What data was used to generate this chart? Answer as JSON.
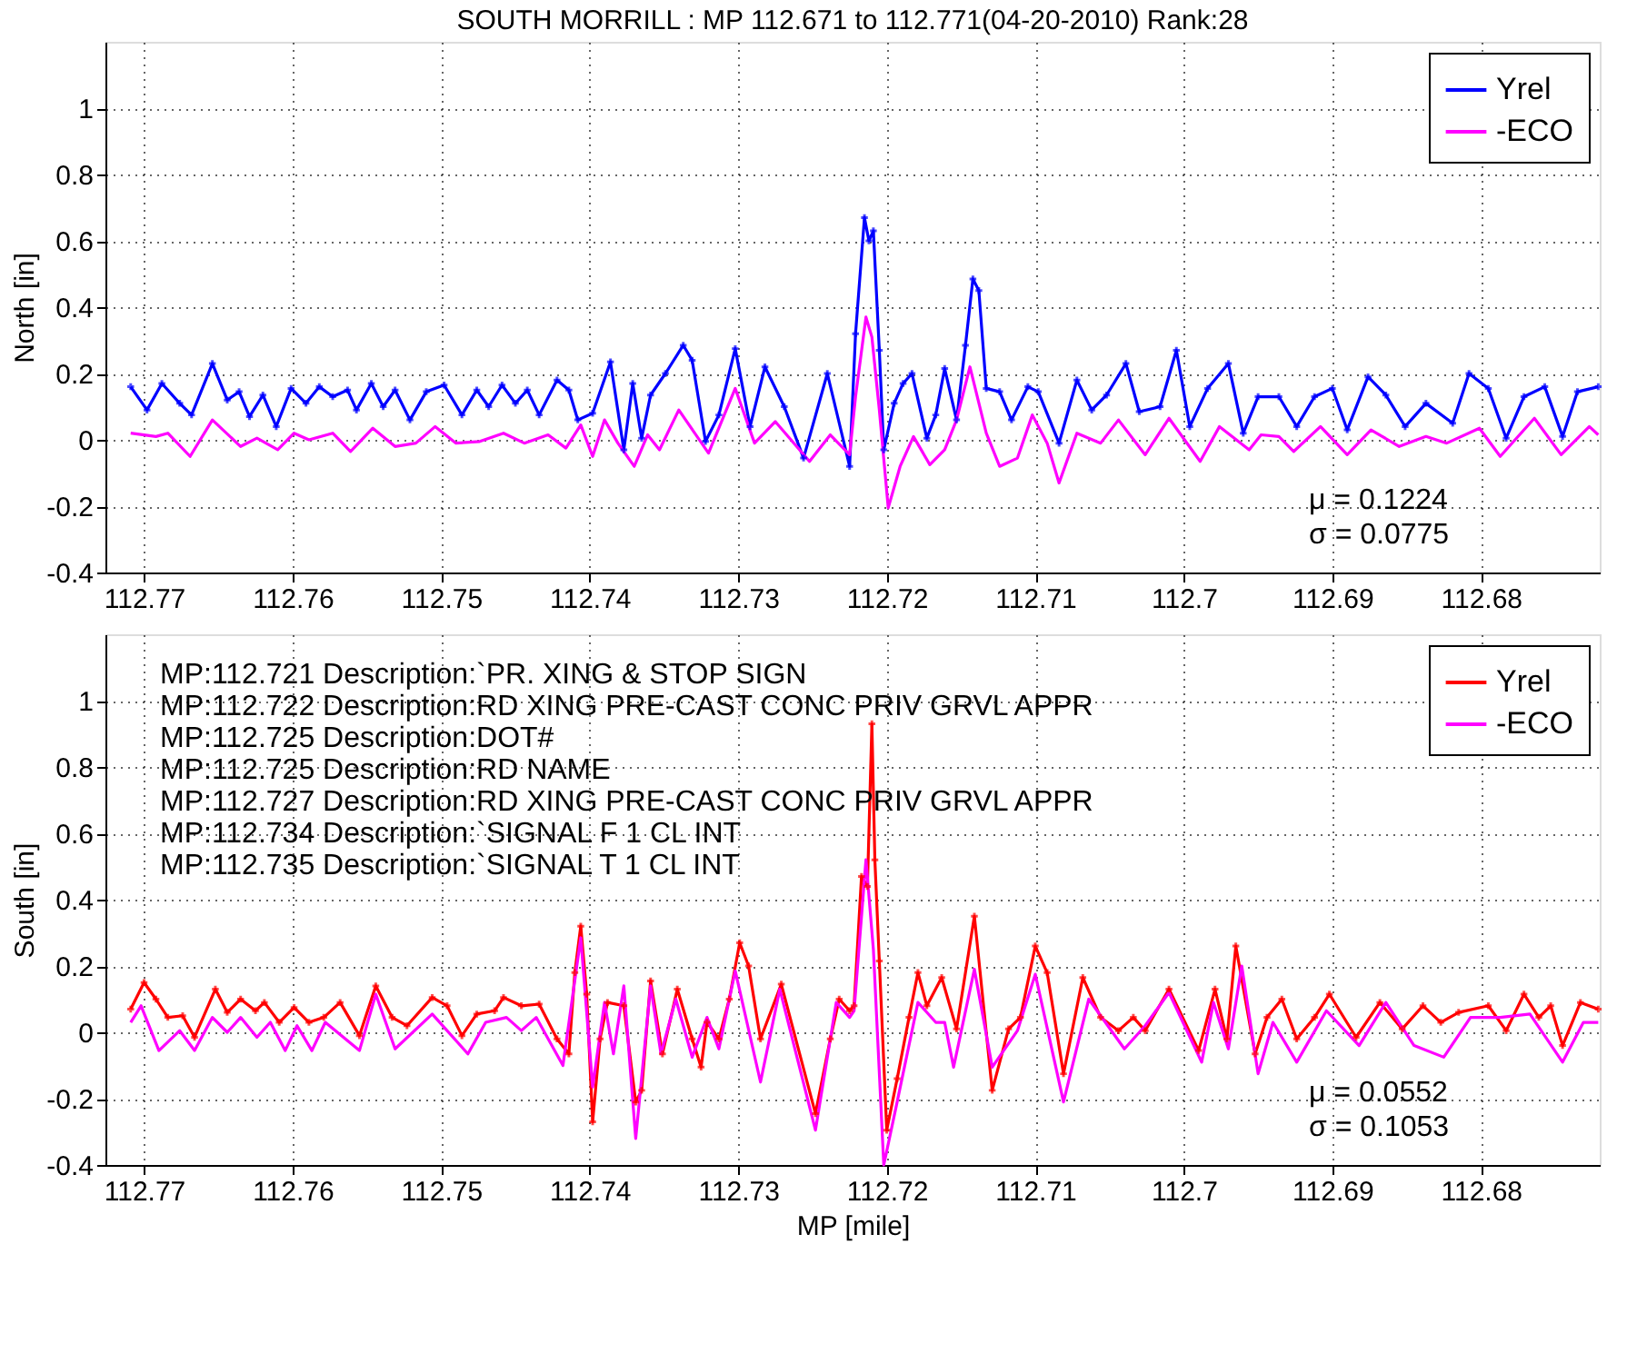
{
  "chart_data": [
    {
      "type": "line",
      "title": "SOUTH MORRILL : MP 112.671 to 112.771(04-20-2010) Rank:28",
      "ylabel": "North [in]",
      "xlim": [
        112.7726,
        112.672
      ],
      "xticks": [
        112.77,
        112.76,
        112.75,
        112.74,
        112.73,
        112.72,
        112.71,
        112.7,
        112.69,
        112.68
      ],
      "ylim": [
        -0.4,
        1.2
      ],
      "yticks": [
        -0.4,
        -0.2,
        0,
        0.2,
        0.4,
        0.6,
        0.8,
        1
      ],
      "grid": true,
      "legend": "top right",
      "annotations": [
        "μ = 0.1224",
        "σ = 0.0775"
      ],
      "series": [
        {
          "name": "Yrel",
          "color": "#0000ff",
          "marker": "cross",
          "x": [
            112.7709,
            112.7698,
            112.7688,
            112.7676,
            112.7668,
            112.7654,
            112.7644,
            112.7636,
            112.7629,
            112.762,
            112.7611,
            112.7601,
            112.7591,
            112.7582,
            112.7573,
            112.7563,
            112.7557,
            112.7547,
            112.7539,
            112.7531,
            112.7521,
            112.751,
            112.7498,
            112.7486,
            112.7476,
            112.7468,
            112.7459,
            112.745,
            112.7442,
            112.7434,
            112.7422,
            112.7414,
            112.7408,
            112.7398,
            112.7386,
            112.7377,
            112.7371,
            112.7365,
            112.7359,
            112.7349,
            112.7337,
            112.7331,
            112.7322,
            112.7313,
            112.7302,
            112.7292,
            112.7282,
            112.7269,
            112.7256,
            112.724,
            112.7225,
            112.7221,
            112.7215,
            112.7212,
            112.7209,
            112.7205,
            112.7202,
            112.7195,
            112.7189,
            112.7183,
            112.7173,
            112.7167,
            112.7161,
            112.7153,
            112.7147,
            112.7142,
            112.7138,
            112.7133,
            112.7124,
            112.7116,
            112.7105,
            112.7098,
            112.7084,
            112.7072,
            112.7062,
            112.7052,
            112.7039,
            112.703,
            112.7016,
            112.7005,
            112.6996,
            112.6984,
            112.697,
            112.696,
            112.695,
            112.6936,
            112.6924,
            112.6912,
            112.69,
            112.689,
            112.6876,
            112.6864,
            112.6851,
            112.6837,
            112.6819,
            112.6808,
            112.6795,
            112.6783,
            112.6771,
            112.6757,
            112.6745,
            112.6735,
            112.6721
          ],
          "values": [
            0.16,
            0.09,
            0.17,
            0.11,
            0.075,
            0.23,
            0.12,
            0.145,
            0.07,
            0.135,
            0.04,
            0.155,
            0.11,
            0.16,
            0.13,
            0.15,
            0.09,
            0.17,
            0.1,
            0.15,
            0.06,
            0.145,
            0.165,
            0.075,
            0.15,
            0.1,
            0.165,
            0.11,
            0.15,
            0.075,
            0.18,
            0.15,
            0.06,
            0.08,
            0.235,
            -0.03,
            0.17,
            0.005,
            0.135,
            0.2,
            0.285,
            0.24,
            -0.005,
            0.075,
            0.275,
            0.04,
            0.22,
            0.1,
            -0.055,
            0.2,
            -0.08,
            0.32,
            0.67,
            0.6,
            0.63,
            0.27,
            -0.03,
            0.11,
            0.17,
            0.2,
            0.005,
            0.075,
            0.215,
            0.06,
            0.285,
            0.485,
            0.45,
            0.155,
            0.145,
            0.06,
            0.16,
            0.145,
            -0.01,
            0.18,
            0.09,
            0.135,
            0.23,
            0.085,
            0.1,
            0.27,
            0.04,
            0.155,
            0.23,
            0.02,
            0.13,
            0.13,
            0.04,
            0.13,
            0.155,
            0.03,
            0.19,
            0.135,
            0.04,
            0.11,
            0.05,
            0.2,
            0.155,
            0.005,
            0.13,
            0.16,
            0.01,
            0.145,
            0.16
          ]
        },
        {
          "name": "-ECO",
          "color": "#ff00ff",
          "marker": "none",
          "x": [
            112.7709,
            112.7692,
            112.7684,
            112.7669,
            112.7654,
            112.7635,
            112.7624,
            112.761,
            112.7599,
            112.7589,
            112.7573,
            112.7561,
            112.7546,
            112.7531,
            112.7517,
            112.7504,
            112.749,
            112.7474,
            112.7458,
            112.7444,
            112.7428,
            112.7416,
            112.7406,
            112.7398,
            112.739,
            112.7381,
            112.737,
            112.7361,
            112.7353,
            112.734,
            112.732,
            112.7302,
            112.7289,
            112.7275,
            112.7252,
            112.7238,
            112.7225,
            112.7221,
            112.7214,
            112.721,
            112.7205,
            112.7199,
            112.7191,
            112.7182,
            112.7171,
            112.7161,
            112.7153,
            112.7144,
            112.7133,
            112.7124,
            112.7112,
            112.7102,
            112.7092,
            112.7084,
            112.7072,
            112.7056,
            112.7044,
            112.7026,
            112.701,
            112.6989,
            112.6976,
            112.6956,
            112.6948,
            112.6936,
            112.6926,
            112.6908,
            112.689,
            112.6874,
            112.6855,
            112.6837,
            112.6823,
            112.6801,
            112.6787,
            112.6764,
            112.6746,
            112.6727,
            112.6721
          ],
          "values": [
            0.02,
            0.01,
            0.02,
            -0.05,
            0.06,
            -0.02,
            0.005,
            -0.03,
            0.02,
            0.0,
            0.02,
            -0.035,
            0.035,
            -0.02,
            -0.01,
            0.04,
            -0.01,
            -0.005,
            0.02,
            -0.01,
            0.015,
            -0.025,
            0.045,
            -0.05,
            0.06,
            -0.01,
            -0.08,
            0.015,
            -0.03,
            0.09,
            -0.04,
            0.155,
            -0.01,
            0.055,
            -0.065,
            0.015,
            -0.045,
            0.13,
            0.37,
            0.31,
            0.09,
            -0.205,
            -0.08,
            0.01,
            -0.075,
            -0.03,
            0.06,
            0.22,
            0.02,
            -0.08,
            -0.055,
            0.075,
            -0.01,
            -0.13,
            0.02,
            -0.01,
            0.06,
            -0.045,
            0.065,
            -0.065,
            0.04,
            -0.03,
            0.015,
            0.01,
            -0.035,
            0.04,
            -0.045,
            0.03,
            -0.02,
            0.01,
            -0.01,
            0.035,
            -0.05,
            0.065,
            -0.045,
            0.04,
            0.015
          ]
        }
      ]
    },
    {
      "type": "line",
      "ylabel": "South [in]",
      "xlabel": "MP [mile]",
      "xlim": [
        112.7726,
        112.672
      ],
      "xticks": [
        112.77,
        112.76,
        112.75,
        112.74,
        112.73,
        112.72,
        112.71,
        112.7,
        112.69,
        112.68
      ],
      "ylim": [
        -0.4,
        1.2
      ],
      "yticks": [
        -0.4,
        -0.2,
        0,
        0.2,
        0.4,
        0.6,
        0.8,
        1
      ],
      "grid": true,
      "legend": "top right",
      "annotations": [
        "MP:112.721  Description:`PR. XING & STOP SIGN",
        "MP:112.722  Description:RD XING PRE-CAST CONC PRIV GRVL APPR",
        "MP:112.725  Description:DOT#",
        "MP:112.725  Description:RD NAME",
        "MP:112.727  Description:RD XING PRE-CAST CONC PRIV GRVL APPR",
        "MP:112.734  Description:`SIGNAL F 1 CL INT",
        "MP:112.735  Description:`SIGNAL T 1 CL INT",
        "μ = 0.0552",
        "σ = 0.1053"
      ],
      "series": [
        {
          "name": "Yrel",
          "color": "#ff0000",
          "marker": "cross",
          "x": [
            112.7709,
            112.77,
            112.7692,
            112.7684,
            112.7674,
            112.7666,
            112.7652,
            112.7644,
            112.7635,
            112.7625,
            112.7619,
            112.7609,
            112.7599,
            112.7589,
            112.7579,
            112.7568,
            112.7555,
            112.7544,
            112.7533,
            112.7523,
            112.7506,
            112.7496,
            112.7486,
            112.7476,
            112.7464,
            112.7458,
            112.7446,
            112.7434,
            112.7422,
            112.7414,
            112.741,
            112.7406,
            112.7402,
            112.7398,
            112.7393,
            112.7388,
            112.7377,
            112.7369,
            112.7365,
            112.7359,
            112.7351,
            112.7341,
            112.7331,
            112.7325,
            112.7321,
            112.7313,
            112.7306,
            112.7299,
            112.7293,
            112.7285,
            112.7271,
            112.7248,
            112.7238,
            112.7232,
            112.7225,
            112.7222,
            112.7217,
            112.7213,
            112.721,
            112.7208,
            112.7205,
            112.72,
            112.7193,
            112.7185,
            112.7179,
            112.7173,
            112.7163,
            112.7153,
            112.7141,
            112.7129,
            112.7118,
            112.711,
            112.71,
            112.7092,
            112.7081,
            112.7068,
            112.7056,
            112.7044,
            112.7034,
            112.7026,
            112.701,
            112.699,
            112.6979,
            112.6971,
            112.6965,
            112.6952,
            112.6944,
            112.6934,
            112.6924,
            112.6912,
            112.6902,
            112.6884,
            112.6868,
            112.6853,
            112.6839,
            112.6827,
            112.6815,
            112.6795,
            112.6783,
            112.6771,
            112.6761,
            112.6753,
            112.6745,
            112.6733,
            112.6721
          ],
          "values": [
            0.07,
            0.15,
            0.1,
            0.045,
            0.05,
            -0.015,
            0.13,
            0.06,
            0.1,
            0.065,
            0.09,
            0.03,
            0.075,
            0.03,
            0.045,
            0.09,
            -0.01,
            0.14,
            0.045,
            0.02,
            0.105,
            0.08,
            -0.01,
            0.055,
            0.065,
            0.105,
            0.08,
            0.085,
            -0.02,
            -0.065,
            0.18,
            0.32,
            0.115,
            -0.27,
            -0.02,
            0.09,
            0.08,
            -0.21,
            -0.175,
            0.155,
            -0.065,
            0.13,
            -0.02,
            -0.105,
            0.03,
            -0.02,
            0.1,
            0.27,
            0.2,
            -0.02,
            0.145,
            -0.245,
            -0.02,
            0.1,
            0.065,
            0.08,
            0.47,
            0.44,
            0.93,
            0.52,
            0.215,
            -0.295,
            -0.14,
            0.045,
            0.18,
            0.08,
            0.165,
            0.01,
            0.35,
            -0.175,
            0.01,
            0.045,
            0.26,
            0.18,
            -0.125,
            0.165,
            0.045,
            0.005,
            0.045,
            0.005,
            0.13,
            -0.055,
            0.13,
            -0.02,
            0.26,
            -0.065,
            0.045,
            0.1,
            -0.02,
            0.045,
            0.115,
            -0.015,
            0.09,
            0.01,
            0.08,
            0.03,
            0.06,
            0.08,
            0.005,
            0.115,
            0.045,
            0.08,
            -0.04,
            0.09,
            0.07
          ]
        },
        {
          "name": "-ECO",
          "color": "#ff00ff",
          "marker": "none",
          "x": [
            112.7709,
            112.7702,
            112.769,
            112.7676,
            112.7666,
            112.7654,
            112.7644,
            112.7635,
            112.7624,
            112.7615,
            112.7605,
            112.7597,
            112.7587,
            112.7578,
            112.7555,
            112.7544,
            112.7531,
            112.7506,
            112.7482,
            112.747,
            112.7456,
            112.7446,
            112.7436,
            112.7418,
            112.7406,
            112.7398,
            112.739,
            112.7384,
            112.7377,
            112.7369,
            112.7359,
            112.7352,
            112.7342,
            112.7331,
            112.7321,
            112.7313,
            112.7302,
            112.7285,
            112.7272,
            112.7248,
            112.7234,
            112.7225,
            112.7222,
            112.7214,
            112.7209,
            112.7202,
            112.7193,
            112.7179,
            112.7167,
            112.7161,
            112.7155,
            112.7141,
            112.7129,
            112.7112,
            112.71,
            112.7081,
            112.7064,
            112.704,
            112.7026,
            112.701,
            112.6988,
            112.698,
            112.697,
            112.6961,
            112.695,
            112.694,
            112.6924,
            112.6904,
            112.6882,
            112.6864,
            112.6845,
            112.6825,
            112.6807,
            112.6787,
            112.6767,
            112.6745,
            112.6731,
            112.6721
          ],
          "values": [
            0.03,
            0.08,
            -0.055,
            0.005,
            -0.055,
            0.045,
            0.0,
            0.045,
            -0.015,
            0.03,
            -0.055,
            0.02,
            -0.055,
            0.03,
            -0.055,
            0.115,
            -0.05,
            0.055,
            -0.065,
            0.03,
            0.045,
            0.005,
            0.045,
            -0.1,
            0.285,
            -0.165,
            0.09,
            -0.065,
            0.14,
            -0.32,
            0.14,
            -0.065,
            0.1,
            -0.075,
            0.045,
            -0.05,
            0.185,
            -0.15,
            0.13,
            -0.295,
            0.09,
            0.045,
            0.065,
            0.52,
            0.25,
            -0.4,
            -0.21,
            0.09,
            0.03,
            0.03,
            -0.105,
            0.19,
            -0.105,
            0.005,
            0.175,
            -0.21,
            0.1,
            -0.05,
            0.02,
            0.12,
            -0.09,
            0.09,
            -0.05,
            0.2,
            -0.125,
            0.03,
            -0.09,
            0.065,
            -0.04,
            0.09,
            -0.04,
            -0.075,
            0.045,
            0.045,
            0.055,
            -0.09,
            0.03,
            0.03
          ]
        }
      ]
    }
  ]
}
